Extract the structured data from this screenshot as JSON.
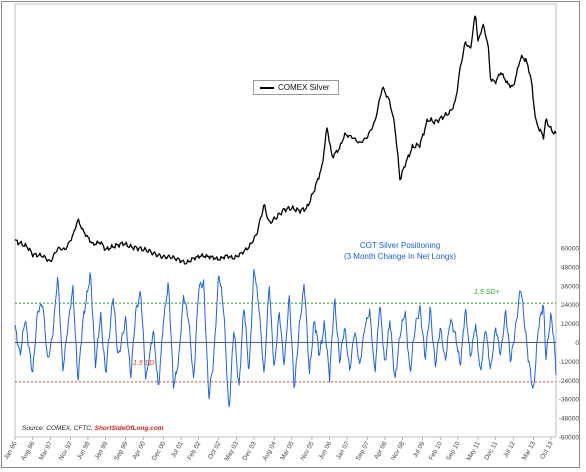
{
  "chart_data": [
    {
      "type": "line",
      "series": [
        {
          "name": "COMEX Silver",
          "color": "#000000"
        }
      ],
      "anchors": [
        [
          "Jan 96",
          0.085
        ],
        [
          "Jun 96",
          0.06
        ],
        [
          "Aug 96",
          0.03
        ],
        [
          "Dec 96",
          0.025
        ],
        [
          "Mar 97",
          0.0
        ],
        [
          "Jun 97",
          0.055
        ],
        [
          "Sep 97",
          0.05
        ],
        [
          "Dec 97",
          0.105
        ],
        [
          "Feb 98",
          0.17
        ],
        [
          "Apr 98",
          0.125
        ],
        [
          "Aug 98",
          0.07
        ],
        [
          "Nov 98",
          0.08
        ],
        [
          "Jan 99",
          0.05
        ],
        [
          "May 99",
          0.065
        ],
        [
          "Aug 99",
          0.075
        ],
        [
          "Nov 99",
          0.06
        ],
        [
          "Feb 00",
          0.055
        ],
        [
          "Jun 00",
          0.045
        ],
        [
          "Sep 00",
          0.03
        ],
        [
          "Dec 00",
          0.02
        ],
        [
          "Mar 01",
          0.02
        ],
        [
          "Jun 01",
          0.01
        ],
        [
          "Sep 01",
          -0.005
        ],
        [
          "Dec 01",
          0.015
        ],
        [
          "Mar 02",
          0.025
        ],
        [
          "Jul 02",
          0.02
        ],
        [
          "Oct 02",
          0.01
        ],
        [
          "Jan 03",
          0.025
        ],
        [
          "Apr 03",
          0.015
        ],
        [
          "Jul 03",
          0.035
        ],
        [
          "Oct 03",
          0.06
        ],
        [
          "Jan 04",
          0.11
        ],
        [
          "Apr 04",
          0.23
        ],
        [
          "Jun 04",
          0.155
        ],
        [
          "Sep 04",
          0.18
        ],
        [
          "Dec 04",
          0.21
        ],
        [
          "Mar 05",
          0.215
        ],
        [
          "Jun 05",
          0.205
        ],
        [
          "Sep 05",
          0.215
        ],
        [
          "Dec 05",
          0.29
        ],
        [
          "Mar 06",
          0.38
        ],
        [
          "May 06",
          0.54
        ],
        [
          "Jul 06",
          0.42
        ],
        [
          "Oct 06",
          0.455
        ],
        [
          "Dec 06",
          0.51
        ],
        [
          "Mar 07",
          0.5
        ],
        [
          "Jun 07",
          0.475
        ],
        [
          "Sep 07",
          0.5
        ],
        [
          "Dec 07",
          0.56
        ],
        [
          "Mar 08",
          0.7
        ],
        [
          "Jun 08",
          0.64
        ],
        [
          "Aug 08",
          0.54
        ],
        [
          "Oct 08",
          0.33
        ],
        [
          "Dec 08",
          0.39
        ],
        [
          "Mar 09",
          0.46
        ],
        [
          "Jun 09",
          0.47
        ],
        [
          "Sep 09",
          0.57
        ],
        [
          "Dec 09",
          0.56
        ],
        [
          "Mar 10",
          0.58
        ],
        [
          "Jun 10",
          0.6
        ],
        [
          "Aug 10",
          0.64
        ],
        [
          "Oct 10",
          0.78
        ],
        [
          "Dec 10",
          0.88
        ],
        [
          "Feb 11",
          0.85
        ],
        [
          "Apr 11",
          1.0
        ],
        [
          "May 11",
          0.88
        ],
        [
          "Jul 11",
          0.95
        ],
        [
          "Sep 11",
          0.87
        ],
        [
          "Oct 11",
          0.73
        ],
        [
          "Dec 11",
          0.72
        ],
        [
          "Feb 12",
          0.76
        ],
        [
          "May 12",
          0.71
        ],
        [
          "Jul 12",
          0.7
        ],
        [
          "Oct 12",
          0.82
        ],
        [
          "Dec 12",
          0.81
        ],
        [
          "Feb 13",
          0.74
        ],
        [
          "Apr 13",
          0.56
        ],
        [
          "Jul 13",
          0.5
        ],
        [
          "Aug 13",
          0.57
        ],
        [
          "Oct 13",
          0.53
        ],
        [
          "Dec 13",
          0.51
        ]
      ]
    },
    {
      "type": "line",
      "title": "COT Silver Positioning\n(3 Month Change In Net Longs)",
      "series": [
        {
          "name": "",
          "color": "#1f64d6"
        }
      ],
      "ylim": [
        -60000,
        60000
      ],
      "yticks": [
        60000,
        48000,
        36000,
        24000,
        12000,
        0,
        -12000,
        -24000,
        -36000,
        -48000,
        -60000
      ],
      "ytick_labels": [
        "60000",
        "48000",
        "36000",
        "24000",
        "12000",
        "0",
        "-12000",
        "-24000",
        "-36000",
        "-48000",
        "-60000"
      ],
      "reference_lines": [
        {
          "label": "1.5 SD+",
          "value": 25000,
          "color": "#2ea02e"
        },
        {
          "label": "0",
          "value": 0,
          "color": "#222222"
        },
        {
          "label": "1.5 SD-",
          "value": -25000,
          "color": "#e04020"
        }
      ],
      "anchors": [
        [
          "Jan 96",
          10000
        ],
        [
          "Mar 96",
          -8000
        ],
        [
          "May 96",
          15000
        ],
        [
          "Aug 96",
          -20000
        ],
        [
          "Oct 96",
          20000
        ],
        [
          "Dec 96",
          25000
        ],
        [
          "Feb 97",
          -12000
        ],
        [
          "Apr 97",
          5000
        ],
        [
          "Jun 97",
          43000
        ],
        [
          "Aug 97",
          -18000
        ],
        [
          "Oct 97",
          10000
        ],
        [
          "Dec 97",
          35000
        ],
        [
          "Feb 98",
          -25000
        ],
        [
          "Apr 98",
          14000
        ],
        [
          "Jul 98",
          44000
        ],
        [
          "Sep 98",
          -15000
        ],
        [
          "Nov 98",
          18000
        ],
        [
          "Jan 99",
          -20000
        ],
        [
          "Apr 99",
          30000
        ],
        [
          "Jun 99",
          -10000
        ],
        [
          "Sep 99",
          15000
        ],
        [
          "Nov 99",
          -22000
        ],
        [
          "Jan 00",
          20000
        ],
        [
          "Mar 00",
          32000
        ],
        [
          "May 00",
          -24000
        ],
        [
          "Aug 00",
          8000
        ],
        [
          "Oct 00",
          -30000
        ],
        [
          "Dec 00",
          14000
        ],
        [
          "Feb 01",
          38000
        ],
        [
          "Apr 01",
          -28000
        ],
        [
          "Jun 01",
          -12000
        ],
        [
          "Aug 01",
          30000
        ],
        [
          "Oct 01",
          15000
        ],
        [
          "Dec 01",
          -25000
        ],
        [
          "Feb 02",
          35000
        ],
        [
          "Apr 02",
          38000
        ],
        [
          "Jun 02",
          -35000
        ],
        [
          "Aug 02",
          -10000
        ],
        [
          "Oct 02",
          45000
        ],
        [
          "Dec 02",
          20000
        ],
        [
          "Feb 03",
          -45000
        ],
        [
          "Apr 03",
          10000
        ],
        [
          "Jun 03",
          -30000
        ],
        [
          "Aug 03",
          25000
        ],
        [
          "Oct 03",
          -20000
        ],
        [
          "Dec 03",
          48000
        ],
        [
          "Feb 04",
          22000
        ],
        [
          "Apr 04",
          -22000
        ],
        [
          "Jun 04",
          38000
        ],
        [
          "Aug 04",
          -18000
        ],
        [
          "Oct 04",
          20000
        ],
        [
          "Dec 04",
          -15000
        ],
        [
          "Feb 05",
          30000
        ],
        [
          "Apr 05",
          -30000
        ],
        [
          "Jun 05",
          10000
        ],
        [
          "Aug 05",
          38000
        ],
        [
          "Oct 05",
          -20000
        ],
        [
          "Dec 05",
          15000
        ],
        [
          "Feb 06",
          -8000
        ],
        [
          "Apr 06",
          12000
        ],
        [
          "Jun 06",
          -22000
        ],
        [
          "Aug 06",
          28000
        ],
        [
          "Oct 06",
          -12000
        ],
        [
          "Dec 06",
          10000
        ],
        [
          "Feb 07",
          -18000
        ],
        [
          "Apr 07",
          8000
        ],
        [
          "Jun 07",
          -15000
        ],
        [
          "Aug 07",
          10000
        ],
        [
          "Oct 07",
          20000
        ],
        [
          "Dec 07",
          -20000
        ],
        [
          "Feb 08",
          25000
        ],
        [
          "Apr 08",
          -15000
        ],
        [
          "Jun 08",
          15000
        ],
        [
          "Aug 08",
          -25000
        ],
        [
          "Oct 08",
          5000
        ],
        [
          "Dec 08",
          20000
        ],
        [
          "Feb 09",
          -20000
        ],
        [
          "Apr 09",
          10000
        ],
        [
          "Jun 09",
          22000
        ],
        [
          "Aug 09",
          -10000
        ],
        [
          "Oct 09",
          22000
        ],
        [
          "Dec 09",
          -15000
        ],
        [
          "Feb 10",
          10000
        ],
        [
          "Apr 10",
          -12000
        ],
        [
          "Jun 10",
          15000
        ],
        [
          "Aug 10",
          5000
        ],
        [
          "Oct 10",
          -15000
        ],
        [
          "Dec 10",
          22000
        ],
        [
          "Feb 11",
          -10000
        ],
        [
          "Apr 11",
          12000
        ],
        [
          "Jun 11",
          -20000
        ],
        [
          "Aug 11",
          10000
        ],
        [
          "Oct 11",
          -18000
        ],
        [
          "Dec 11",
          10000
        ],
        [
          "Feb 12",
          -8000
        ],
        [
          "Apr 12",
          20000
        ],
        [
          "Jun 12",
          -12000
        ],
        [
          "Aug 12",
          10000
        ],
        [
          "Oct 12",
          36000
        ],
        [
          "Nov 12",
          20000
        ],
        [
          "Jan 13",
          -10000
        ],
        [
          "Mar 13",
          -32000
        ],
        [
          "May 13",
          10000
        ],
        [
          "Jul 13",
          25000
        ],
        [
          "Aug 13",
          -10000
        ],
        [
          "Oct 13",
          18000
        ],
        [
          "Nov 13",
          5000
        ],
        [
          "Dec 13",
          -18000
        ]
      ]
    }
  ],
  "x_axis": {
    "tick_labels": [
      "Jan 96",
      "Aug 96",
      "Mar 97",
      "Nov 97",
      "Jun 98",
      "Jan 99",
      "Sep 99",
      "Apr 00",
      "Dec 00",
      "Jul 01",
      "Feb 02",
      "Oct 02",
      "May 03",
      "Dec 03",
      "Aug 04",
      "Mar 05",
      "Nov 05",
      "Jun 06",
      "Jan 07",
      "Sep 07",
      "Apr 08",
      "Nov 08",
      "Jul 09",
      "Feb 10",
      "Sep 10",
      "May 11",
      "Dec 11",
      "Jul 12",
      "Mar 13",
      "Oct 13"
    ]
  },
  "legend": {
    "label": "COMEX Silver"
  },
  "cot_title": {
    "line1": "COT Silver Positioning",
    "line2": "(3 Month Change In Net Longs)"
  },
  "sd_labels": {
    "plus": "1.5 SD+",
    "minus": "1.5 SD-"
  },
  "source": {
    "prefix": "Source: COMEX, CFTC, ",
    "link": "ShortSideOfLong.com"
  },
  "colors": {
    "silver": "#000000",
    "cot": "#1f64d6",
    "sd_plus": "#2ea02e",
    "sd_minus": "#e04020",
    "frame": "#8a8a8a"
  }
}
